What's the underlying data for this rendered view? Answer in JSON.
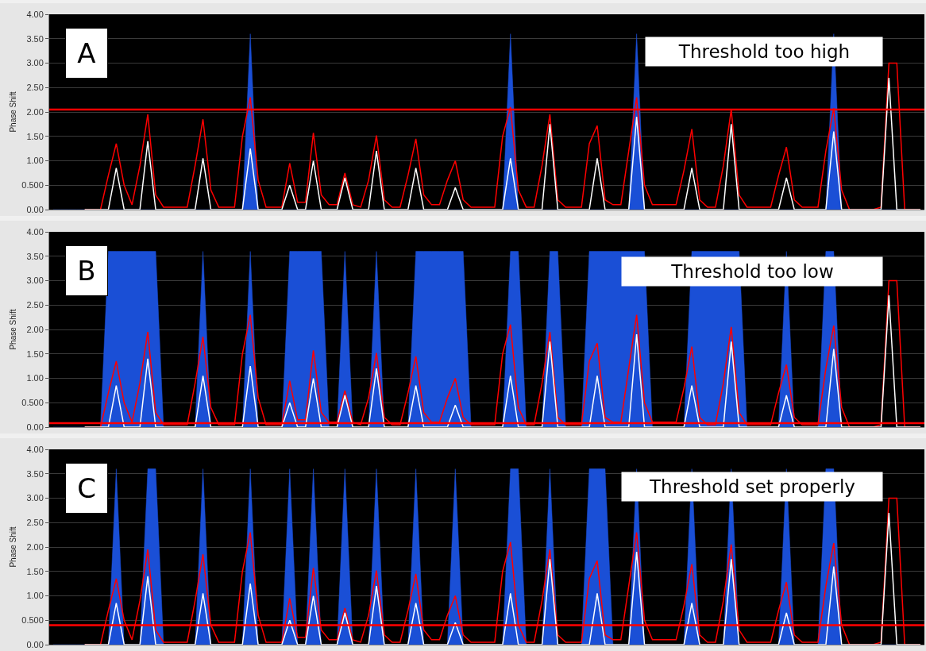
{
  "chart_data": [
    {
      "type": "line",
      "ylabel": "Phase Shift",
      "ylim": [
        0,
        4
      ],
      "yticks": [
        {
          "value": 0,
          "label": "0.00"
        },
        {
          "value": 0.5,
          "label": "0.500"
        },
        {
          "value": 1,
          "label": "1.00"
        },
        {
          "value": 1.5,
          "label": "1.50"
        },
        {
          "value": 2,
          "label": "2.00"
        },
        {
          "value": 2.5,
          "label": "2.50"
        },
        {
          "value": 3,
          "label": "3.00"
        },
        {
          "value": 3.5,
          "label": "3.50"
        },
        {
          "value": 4,
          "label": "4.00"
        }
      ],
      "grid": "y",
      "tick_labels": "y",
      "annotations": [
        "A",
        "Threshold too high"
      ],
      "ref_lines": [
        {
          "axis": "y",
          "value": 2.05,
          "color": "#ff0000"
        }
      ],
      "categories": [
        null,
        null,
        null,
        null,
        null,
        null,
        null,
        null,
        null,
        null,
        null,
        null,
        null,
        null,
        null,
        null,
        null,
        null,
        null,
        null,
        null,
        null,
        null,
        null,
        null,
        null,
        null,
        null,
        null,
        null,
        null,
        null,
        null,
        null,
        null,
        null,
        null,
        null,
        null,
        null,
        null,
        null,
        null,
        null,
        null,
        null,
        null,
        null,
        null,
        null,
        null,
        null,
        null,
        null,
        null,
        null,
        null,
        null,
        null,
        null,
        null,
        null,
        null,
        null,
        null,
        null,
        null,
        null,
        null,
        null,
        null,
        null,
        null,
        null,
        null,
        null,
        null,
        null,
        null,
        null,
        null,
        null,
        null,
        null,
        null,
        null,
        null,
        null,
        null,
        null,
        null,
        null,
        null,
        null,
        null,
        null,
        null,
        null,
        null,
        null,
        null,
        null,
        null,
        null,
        null,
        null,
        null,
        null,
        null,
        null,
        null
      ],
      "series": [
        {
          "type": "area",
          "color": "#1a4fd6",
          "values": [
            0,
            0,
            0,
            0,
            0,
            0,
            0,
            0,
            0,
            0,
            0,
            0,
            0,
            0,
            0,
            0,
            0,
            0,
            0,
            0,
            0,
            0,
            0,
            0,
            0,
            3.6,
            0,
            0,
            0,
            0,
            0,
            0,
            0,
            0,
            0,
            0,
            0,
            0,
            0,
            0,
            0,
            0,
            0,
            0,
            0,
            0,
            0,
            0,
            0,
            0,
            0,
            0,
            0,
            0,
            0,
            0,
            0,
            0,
            3.6,
            0,
            0,
            0,
            0,
            0,
            0,
            0,
            0,
            0,
            0,
            0,
            0,
            0,
            0,
            0,
            3.6,
            0,
            0,
            0,
            0,
            0,
            0,
            0,
            0,
            0,
            0,
            0,
            0,
            0,
            0,
            0,
            0,
            0,
            0,
            0,
            0,
            0,
            0,
            0,
            0,
            3.6,
            0,
            0,
            0,
            0,
            0,
            0,
            0,
            0,
            0,
            0,
            0
          ]
        },
        {
          "color": "#ff0000",
          "values": [
            null,
            null,
            null,
            null,
            0,
            0,
            0,
            0.7,
            1.35,
            0.5,
            0.1,
            0.9,
            1.95,
            0.3,
            0.05,
            0.05,
            0.05,
            0.05,
            0.9,
            1.85,
            0.4,
            0.05,
            0.05,
            0.05,
            1.5,
            2.3,
            0.6,
            0.05,
            0.05,
            0.05,
            0.95,
            0.15,
            0.15,
            1.57,
            0.3,
            0.1,
            0.1,
            0.75,
            0.1,
            0.05,
            0.6,
            1.52,
            0.2,
            0.05,
            0.05,
            0.7,
            1.45,
            0.3,
            0.1,
            0.1,
            0.6,
            1.0,
            0.2,
            0.05,
            0.05,
            0.05,
            0.05,
            1.5,
            2.1,
            0.4,
            0.05,
            0.05,
            0.9,
            1.95,
            0.2,
            0.05,
            0.05,
            0.05,
            1.35,
            1.72,
            0.2,
            0.1,
            0.1,
            1.2,
            2.3,
            0.5,
            0.1,
            0.1,
            0.1,
            0.1,
            0.8,
            1.65,
            0.2,
            0.05,
            0.05,
            0.9,
            2.05,
            0.3,
            0.05,
            0.05,
            0.05,
            0.05,
            0.7,
            1.28,
            0.2,
            0.05,
            0.05,
            0.05,
            1.2,
            2.08,
            0.4,
            0,
            0,
            0,
            0,
            0.05,
            3.0,
            3.0,
            0,
            0,
            0
          ]
        },
        {
          "color": "#ffffff",
          "values": [
            null,
            null,
            null,
            null,
            0,
            0,
            0,
            0,
            0.85,
            0,
            0,
            0,
            1.4,
            0,
            0,
            0,
            0,
            0,
            0,
            1.05,
            0,
            0,
            0,
            0,
            0,
            1.25,
            0,
            0,
            0,
            0,
            0.5,
            0,
            0,
            1.0,
            0,
            0,
            0,
            0.65,
            0,
            0,
            0,
            1.2,
            0,
            0,
            0,
            0,
            0.85,
            0,
            0,
            0,
            0,
            0.45,
            0,
            0,
            0,
            0,
            0,
            0,
            1.05,
            0,
            0,
            0,
            0,
            1.75,
            0,
            0,
            0,
            0,
            0,
            1.05,
            0,
            0,
            0,
            0,
            1.9,
            0,
            0,
            0,
            0,
            0,
            0,
            0.85,
            0,
            0,
            0,
            0,
            1.75,
            0,
            0,
            0,
            0,
            0,
            0,
            0.65,
            0,
            0,
            0,
            0,
            0,
            1.6,
            0,
            0,
            0,
            0,
            0,
            0,
            2.7,
            0,
            0,
            0,
            0
          ]
        }
      ]
    },
    {
      "type": "line",
      "ylabel": "Phase Shift",
      "ylim": [
        0,
        4
      ],
      "yticks": [
        {
          "value": 0,
          "label": "0.00"
        },
        {
          "value": 0.5,
          "label": "0.500"
        },
        {
          "value": 1,
          "label": "1.00"
        },
        {
          "value": 1.5,
          "label": "1.50"
        },
        {
          "value": 2,
          "label": "2.00"
        },
        {
          "value": 2.5,
          "label": "2.50"
        },
        {
          "value": 3,
          "label": "3.00"
        },
        {
          "value": 3.5,
          "label": "3.50"
        },
        {
          "value": 4,
          "label": "4.00"
        }
      ],
      "grid": "y",
      "tick_labels": "y",
      "annotations": [
        "B",
        "Threshold too low"
      ],
      "ref_lines": [
        {
          "axis": "y",
          "value": 0.08,
          "color": "#ff0000"
        }
      ],
      "categories": [
        null,
        null,
        null,
        null,
        null,
        null,
        null,
        null,
        null,
        null,
        null,
        null,
        null,
        null,
        null,
        null,
        null,
        null,
        null,
        null,
        null,
        null,
        null,
        null,
        null,
        null,
        null,
        null,
        null,
        null,
        null,
        null,
        null,
        null,
        null,
        null,
        null,
        null,
        null,
        null,
        null,
        null,
        null,
        null,
        null,
        null,
        null,
        null,
        null,
        null,
        null,
        null,
        null,
        null,
        null,
        null,
        null,
        null,
        null,
        null,
        null,
        null,
        null,
        null,
        null,
        null,
        null,
        null,
        null,
        null,
        null,
        null,
        null,
        null,
        null,
        null,
        null,
        null,
        null,
        null,
        null,
        null,
        null,
        null,
        null,
        null,
        null,
        null,
        null,
        null,
        null,
        null,
        null,
        null,
        null,
        null,
        null,
        null,
        null,
        null,
        null,
        null,
        null,
        null,
        null,
        null,
        null,
        null,
        null,
        null,
        null
      ],
      "series": [
        {
          "type": "area",
          "color": "#1a4fd6",
          "values": [
            0,
            0,
            0,
            0,
            0,
            0,
            0,
            3.6,
            3.6,
            3.6,
            3.6,
            3.6,
            3.6,
            3.6,
            0,
            0,
            0,
            0,
            0,
            3.6,
            0,
            0,
            0,
            0,
            0,
            3.6,
            0,
            0,
            0,
            0,
            3.6,
            3.6,
            3.6,
            3.6,
            3.6,
            0,
            0,
            3.6,
            0,
            0,
            0,
            3.6,
            0,
            0,
            0,
            0,
            3.6,
            3.6,
            3.6,
            3.6,
            3.6,
            3.6,
            3.6,
            0,
            0,
            0,
            0,
            0,
            3.6,
            3.6,
            0,
            0,
            0,
            3.6,
            3.6,
            0,
            0,
            0,
            3.6,
            3.6,
            3.6,
            3.6,
            3.6,
            3.6,
            3.6,
            3.6,
            0,
            0,
            0,
            0,
            0,
            3.6,
            3.6,
            3.6,
            3.6,
            3.6,
            3.6,
            3.6,
            0,
            0,
            0,
            0,
            0,
            3.6,
            0,
            0,
            0,
            0,
            3.6,
            3.6,
            0,
            0,
            0,
            0,
            0,
            0,
            0,
            0,
            0,
            0,
            0
          ]
        },
        {
          "color": "#ff0000",
          "values": [
            null,
            null,
            null,
            null,
            0,
            0,
            0,
            0.7,
            1.35,
            0.5,
            0.1,
            0.9,
            1.95,
            0.3,
            0.05,
            0.05,
            0.05,
            0.05,
            0.9,
            1.85,
            0.4,
            0.05,
            0.05,
            0.05,
            1.5,
            2.3,
            0.6,
            0.05,
            0.05,
            0.05,
            0.95,
            0.15,
            0.15,
            1.57,
            0.3,
            0.1,
            0.1,
            0.75,
            0.1,
            0.05,
            0.6,
            1.52,
            0.2,
            0.05,
            0.05,
            0.7,
            1.45,
            0.3,
            0.1,
            0.1,
            0.6,
            1.0,
            0.2,
            0.05,
            0.05,
            0.05,
            0.05,
            1.5,
            2.1,
            0.4,
            0.05,
            0.05,
            0.9,
            1.95,
            0.2,
            0.05,
            0.05,
            0.05,
            1.35,
            1.72,
            0.2,
            0.1,
            0.1,
            1.2,
            2.3,
            0.5,
            0.1,
            0.1,
            0.1,
            0.1,
            0.8,
            1.65,
            0.2,
            0.05,
            0.05,
            0.9,
            2.05,
            0.3,
            0.05,
            0.05,
            0.05,
            0.05,
            0.7,
            1.28,
            0.2,
            0.05,
            0.05,
            0.05,
            1.2,
            2.08,
            0.4,
            0,
            0,
            0,
            0,
            0.05,
            3.0,
            3.0,
            0,
            0,
            0
          ]
        },
        {
          "color": "#ffffff",
          "values": [
            null,
            null,
            null,
            null,
            0,
            0,
            0,
            0,
            0.85,
            0,
            0,
            0,
            1.4,
            0,
            0,
            0,
            0,
            0,
            0,
            1.05,
            0,
            0,
            0,
            0,
            0,
            1.25,
            0,
            0,
            0,
            0,
            0.5,
            0,
            0,
            1.0,
            0,
            0,
            0,
            0.65,
            0,
            0,
            0,
            1.2,
            0,
            0,
            0,
            0,
            0.85,
            0,
            0,
            0,
            0,
            0.45,
            0,
            0,
            0,
            0,
            0,
            0,
            1.05,
            0,
            0,
            0,
            0,
            1.75,
            0,
            0,
            0,
            0,
            0,
            1.05,
            0,
            0,
            0,
            0,
            1.9,
            0,
            0,
            0,
            0,
            0,
            0,
            0.85,
            0,
            0,
            0,
            0,
            1.75,
            0,
            0,
            0,
            0,
            0,
            0,
            0.65,
            0,
            0,
            0,
            0,
            0,
            1.6,
            0,
            0,
            0,
            0,
            0,
            0,
            2.7,
            0,
            0,
            0,
            0
          ]
        }
      ]
    },
    {
      "type": "line",
      "ylabel": "Phase Shift",
      "ylim": [
        0,
        4
      ],
      "yticks": [
        {
          "value": 0,
          "label": "0.00"
        },
        {
          "value": 0.5,
          "label": "0.500"
        },
        {
          "value": 1,
          "label": "1.00"
        },
        {
          "value": 1.5,
          "label": "1.50"
        },
        {
          "value": 2,
          "label": "2.00"
        },
        {
          "value": 2.5,
          "label": "2.50"
        },
        {
          "value": 3,
          "label": "3.00"
        },
        {
          "value": 3.5,
          "label": "3.50"
        },
        {
          "value": 4,
          "label": "4.00"
        }
      ],
      "grid": "y",
      "tick_labels": "y",
      "annotations": [
        "C",
        "Threshold set properly"
      ],
      "ref_lines": [
        {
          "axis": "y",
          "value": 0.4,
          "color": "#ff0000"
        }
      ],
      "categories": [
        null,
        null,
        null,
        null,
        null,
        null,
        null,
        null,
        null,
        null,
        null,
        null,
        null,
        null,
        null,
        null,
        null,
        null,
        null,
        null,
        null,
        null,
        null,
        null,
        null,
        null,
        null,
        null,
        null,
        null,
        null,
        null,
        null,
        null,
        null,
        null,
        null,
        null,
        null,
        null,
        null,
        null,
        null,
        null,
        null,
        null,
        null,
        null,
        null,
        null,
        null,
        null,
        null,
        null,
        null,
        null,
        null,
        null,
        null,
        null,
        null,
        null,
        null,
        null,
        null,
        null,
        null,
        null,
        null,
        null,
        null,
        null,
        null,
        null,
        null,
        null,
        null,
        null,
        null,
        null,
        null,
        null,
        null,
        null,
        null,
        null,
        null,
        null,
        null,
        null,
        null,
        null,
        null,
        null,
        null,
        null,
        null,
        null,
        null,
        null,
        null,
        null,
        null,
        null,
        null,
        null,
        null,
        null,
        null,
        null,
        null
      ],
      "series": [
        {
          "type": "area",
          "color": "#1a4fd6",
          "values": [
            0,
            0,
            0,
            0,
            0,
            0,
            0,
            0,
            3.6,
            0,
            0,
            0,
            3.6,
            3.6,
            0,
            0,
            0,
            0,
            0,
            3.6,
            0,
            0,
            0,
            0,
            0,
            3.6,
            0,
            0,
            0,
            0,
            3.6,
            0,
            0,
            3.6,
            0,
            0,
            0,
            3.6,
            0,
            0,
            0,
            3.6,
            0,
            0,
            0,
            0,
            3.6,
            0,
            0,
            0,
            0,
            3.6,
            0,
            0,
            0,
            0,
            0,
            0,
            3.6,
            3.6,
            0,
            0,
            0,
            3.6,
            0,
            0,
            0,
            0,
            3.6,
            3.6,
            3.6,
            0,
            0,
            0,
            3.6,
            0,
            0,
            0,
            0,
            0,
            0,
            3.6,
            0,
            0,
            0,
            0,
            3.6,
            0,
            0,
            0,
            0,
            0,
            0,
            3.6,
            0,
            0,
            0,
            0,
            3.6,
            3.6,
            0,
            0,
            0,
            0,
            0,
            0,
            0,
            0,
            0,
            0,
            0
          ]
        },
        {
          "color": "#ff0000",
          "values": [
            null,
            null,
            null,
            null,
            0,
            0,
            0,
            0.7,
            1.35,
            0.5,
            0.1,
            0.9,
            1.95,
            0.3,
            0.05,
            0.05,
            0.05,
            0.05,
            0.9,
            1.85,
            0.4,
            0.05,
            0.05,
            0.05,
            1.5,
            2.3,
            0.6,
            0.05,
            0.05,
            0.05,
            0.95,
            0.15,
            0.15,
            1.57,
            0.3,
            0.1,
            0.1,
            0.75,
            0.1,
            0.05,
            0.6,
            1.52,
            0.2,
            0.05,
            0.05,
            0.7,
            1.45,
            0.3,
            0.1,
            0.1,
            0.6,
            1.0,
            0.2,
            0.05,
            0.05,
            0.05,
            0.05,
            1.5,
            2.1,
            0.4,
            0.05,
            0.05,
            0.9,
            1.95,
            0.2,
            0.05,
            0.05,
            0.05,
            1.35,
            1.72,
            0.2,
            0.1,
            0.1,
            1.2,
            2.3,
            0.5,
            0.1,
            0.1,
            0.1,
            0.1,
            0.8,
            1.65,
            0.2,
            0.05,
            0.05,
            0.9,
            2.05,
            0.3,
            0.05,
            0.05,
            0.05,
            0.05,
            0.7,
            1.28,
            0.2,
            0.05,
            0.05,
            0.05,
            1.2,
            2.08,
            0.4,
            0,
            0,
            0,
            0,
            0.05,
            3.0,
            3.0,
            0,
            0,
            0
          ]
        },
        {
          "color": "#ffffff",
          "values": [
            null,
            null,
            null,
            null,
            0,
            0,
            0,
            0,
            0.85,
            0,
            0,
            0,
            1.4,
            0,
            0,
            0,
            0,
            0,
            0,
            1.05,
            0,
            0,
            0,
            0,
            0,
            1.25,
            0,
            0,
            0,
            0,
            0.5,
            0,
            0,
            1.0,
            0,
            0,
            0,
            0.65,
            0,
            0,
            0,
            1.2,
            0,
            0,
            0,
            0,
            0.85,
            0,
            0,
            0,
            0,
            0.45,
            0,
            0,
            0,
            0,
            0,
            0,
            1.05,
            0,
            0,
            0,
            0,
            1.75,
            0,
            0,
            0,
            0,
            0,
            1.05,
            0,
            0,
            0,
            0,
            1.9,
            0,
            0,
            0,
            0,
            0,
            0,
            0.85,
            0,
            0,
            0,
            0,
            1.75,
            0,
            0,
            0,
            0,
            0,
            0,
            0.65,
            0,
            0,
            0,
            0,
            0,
            1.6,
            0,
            0,
            0,
            0,
            0,
            0,
            2.7,
            0,
            0,
            0,
            0
          ]
        }
      ]
    }
  ]
}
